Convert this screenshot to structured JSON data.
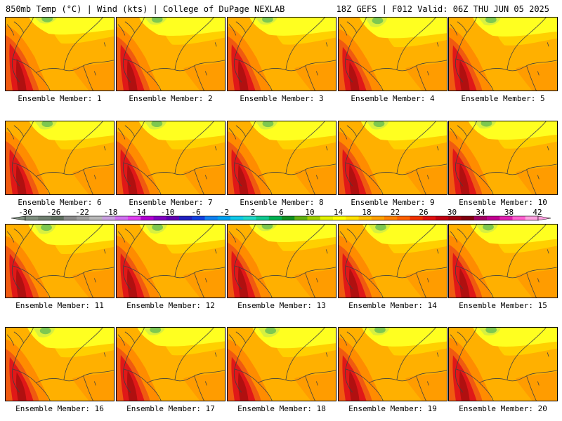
{
  "header": {
    "left_title": "850mb Temp (°C) | Wind (kts) | College of DuPage NEXLAB",
    "right_title": "18Z GEFS | F012 Valid: 06Z THU JUN 05 2025"
  },
  "members": [
    "Ensemble Member: 1",
    "Ensemble Member: 2",
    "Ensemble Member: 3",
    "Ensemble Member: 4",
    "Ensemble Member: 5",
    "Ensemble Member: 6",
    "Ensemble Member: 7",
    "Ensemble Member: 8",
    "Ensemble Member: 9",
    "Ensemble Member: 10",
    "Ensemble Member: 11",
    "Ensemble Member: 12",
    "Ensemble Member: 13",
    "Ensemble Member: 14",
    "Ensemble Member: 15",
    "Ensemble Member: 16",
    "Ensemble Member: 17",
    "Ensemble Member: 18",
    "Ensemble Member: 19",
    "Ensemble Member: 20"
  ],
  "colorbar": {
    "tick_labels": [
      "-30",
      "-26",
      "-22",
      "-18",
      "-14",
      "-10",
      "-6",
      "-2",
      "2",
      "6",
      "10",
      "14",
      "18",
      "22",
      "26",
      "30",
      "34",
      "38",
      "42"
    ],
    "range": [
      -30,
      42
    ],
    "step": 2,
    "colors": [
      "#7f8f7f",
      "#6f7f6f",
      "#5f6f5f",
      "#8a8a8a",
      "#a0a0a0",
      "#b8b8b8",
      "#c9a0e0",
      "#d070f0",
      "#e040f0",
      "#b000d0",
      "#8000c0",
      "#6000b0",
      "#2020c0",
      "#1040e0",
      "#1080f0",
      "#00a0f0",
      "#10c8e8",
      "#20d8c8",
      "#10c890",
      "#00b050",
      "#109020",
      "#60b010",
      "#a0d000",
      "#e0f000",
      "#ffff00",
      "#ffe000",
      "#ffc000",
      "#ffa000",
      "#ff8000",
      "#ff6000",
      "#f03000",
      "#e01010",
      "#c00010",
      "#a00010",
      "#800010",
      "#a00060",
      "#c00090",
      "#e020b0",
      "#ff60d0",
      "#ffa0e0"
    ]
  },
  "map": {
    "colors": {
      "cool_green": "#7ec850",
      "yellow_green": "#d8f040",
      "yellow": "#ffff20",
      "light_orange": "#ffd000",
      "orange": "#ffb000",
      "dark_orange": "#ff8c00",
      "red_orange": "#f05a10",
      "red": "#e01818",
      "dark_red": "#b01010",
      "boundary": "#404040"
    }
  }
}
